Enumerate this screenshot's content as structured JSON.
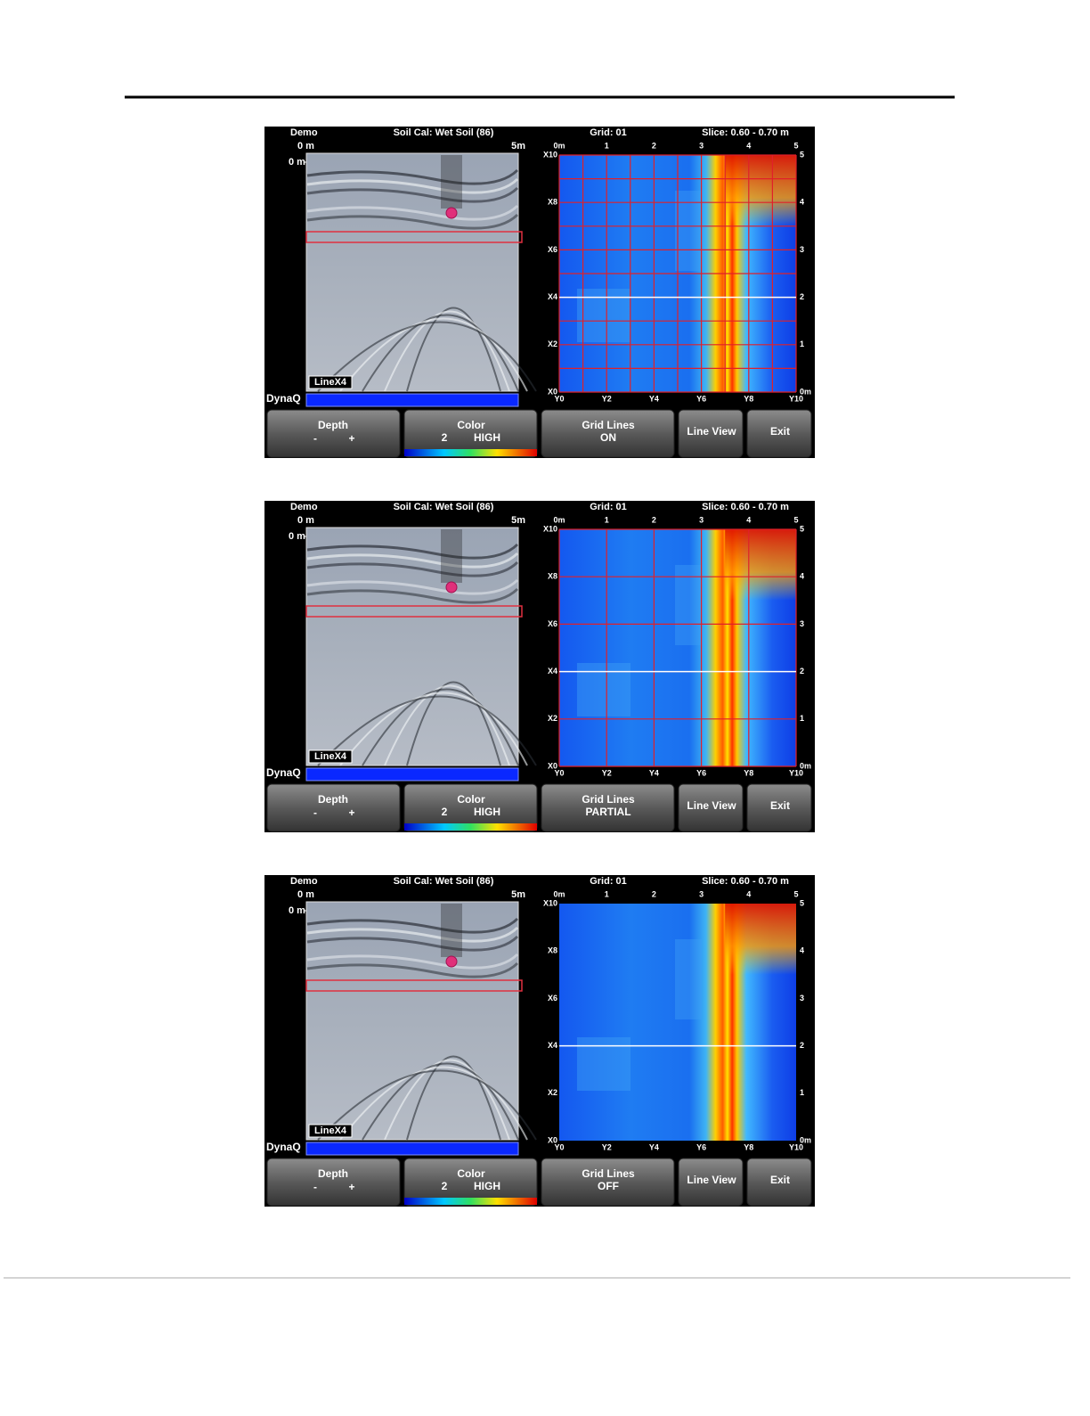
{
  "screens": [
    {
      "header": {
        "mode": "Demo",
        "soil_cal": "Soil Cal: Wet Soil (86)",
        "grid": "Grid: 01",
        "slice": "Slice: 0.60 - 0.70 m"
      },
      "radargram": {
        "start": "0 m",
        "end": "5m",
        "depth": "0 m",
        "line": "LineX4",
        "bar_label": "DynaQ"
      },
      "map": {
        "top_labels": [
          "0m",
          "1",
          "2",
          "3",
          "4",
          "5"
        ],
        "left_labels": [
          "X10",
          "X8",
          "X6",
          "X4",
          "X2",
          "X0"
        ],
        "bottom_labels": [
          "Y0",
          "Y2",
          "Y4",
          "Y6",
          "Y8",
          "Y10"
        ],
        "right_labels": [
          "5",
          "4",
          "3",
          "2",
          "1",
          "0m"
        ]
      },
      "buttons": {
        "depth": {
          "label": "Depth",
          "minus": "-",
          "plus": "+"
        },
        "color": {
          "label": "Color",
          "level": "2",
          "mode": "HIGH"
        },
        "grid_lines": {
          "label": "Grid Lines",
          "state": "ON"
        },
        "line_view": "Line View",
        "exit": "Exit"
      }
    },
    {
      "header": {
        "mode": "Demo",
        "soil_cal": "Soil Cal: Wet Soil (86)",
        "grid": "Grid: 01",
        "slice": "Slice: 0.60 - 0.70 m"
      },
      "radargram": {
        "start": "0 m",
        "end": "5m",
        "depth": "0 m",
        "line": "LineX4",
        "bar_label": "DynaQ"
      },
      "map": {
        "top_labels": [
          "0m",
          "1",
          "2",
          "3",
          "4",
          "5"
        ],
        "left_labels": [
          "X10",
          "X8",
          "X6",
          "X4",
          "X2",
          "X0"
        ],
        "bottom_labels": [
          "Y0",
          "Y2",
          "Y4",
          "Y6",
          "Y8",
          "Y10"
        ],
        "right_labels": [
          "5",
          "4",
          "3",
          "2",
          "1",
          "0m"
        ]
      },
      "buttons": {
        "depth": {
          "label": "Depth",
          "minus": "-",
          "plus": "+"
        },
        "color": {
          "label": "Color",
          "level": "2",
          "mode": "HIGH"
        },
        "grid_lines": {
          "label": "Grid Lines",
          "state": "PARTIAL"
        },
        "line_view": "Line View",
        "exit": "Exit"
      }
    },
    {
      "header": {
        "mode": "Demo",
        "soil_cal": "Soil Cal: Wet Soil (86)",
        "grid": "Grid: 01",
        "slice": "Slice: 0.60 - 0.70 m"
      },
      "radargram": {
        "start": "0 m",
        "end": "5m",
        "depth": "0 m",
        "line": "LineX4",
        "bar_label": "DynaQ"
      },
      "map": {
        "top_labels": [
          "0m",
          "1",
          "2",
          "3",
          "4",
          "5"
        ],
        "left_labels": [
          "X10",
          "X8",
          "X6",
          "X4",
          "X2",
          "X0"
        ],
        "bottom_labels": [
          "Y0",
          "Y2",
          "Y4",
          "Y6",
          "Y8",
          "Y10"
        ],
        "right_labels": [
          "5",
          "4",
          "3",
          "2",
          "1",
          "0m"
        ]
      },
      "buttons": {
        "depth": {
          "label": "Depth",
          "minus": "-",
          "plus": "+"
        },
        "color": {
          "label": "Color",
          "level": "2",
          "mode": "HIGH"
        },
        "grid_lines": {
          "label": "Grid Lines",
          "state": "OFF"
        },
        "line_view": "Line View",
        "exit": "Exit"
      }
    }
  ]
}
